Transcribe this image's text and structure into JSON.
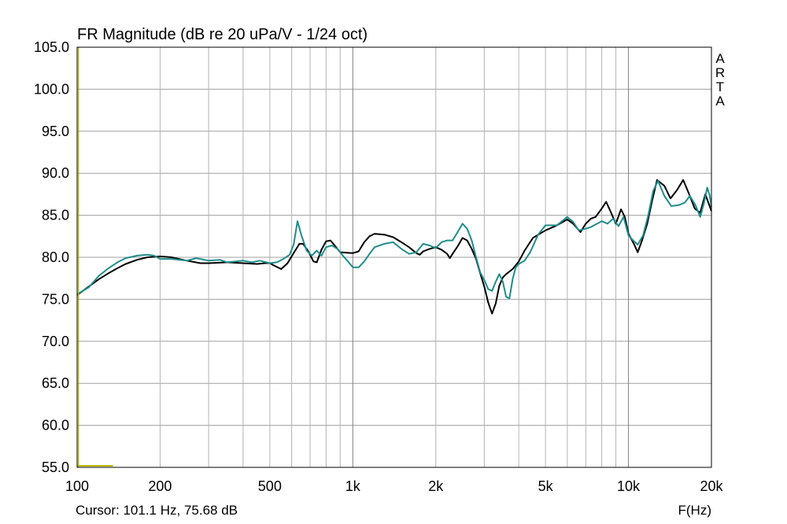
{
  "chart_data": {
    "type": "line",
    "title": "FR Magnitude (dB re 20 uPa/V - 1/24 oct)",
    "xlabel": "F(Hz)",
    "ylabel": "",
    "x_scale": "log",
    "xlim": [
      100,
      20000
    ],
    "ylim": [
      55.0,
      105.0
    ],
    "grid": true,
    "watermark": "ARTA",
    "cursor_readout": "Cursor: 101.1 Hz, 75.68 dB",
    "x_ticks": [
      {
        "value": 100,
        "label": "100"
      },
      {
        "value": 200,
        "label": "200"
      },
      {
        "value": 500,
        "label": "500"
      },
      {
        "value": 1000,
        "label": "1k"
      },
      {
        "value": 2000,
        "label": "2k"
      },
      {
        "value": 5000,
        "label": "5k"
      },
      {
        "value": 10000,
        "label": "10k"
      },
      {
        "value": 20000,
        "label": "20k"
      }
    ],
    "y_ticks": [
      {
        "value": 105,
        "label": "105.0"
      },
      {
        "value": 100,
        "label": "100.0"
      },
      {
        "value": 95,
        "label": "95.0"
      },
      {
        "value": 90,
        "label": "90.0"
      },
      {
        "value": 85,
        "label": "85.0"
      },
      {
        "value": 80,
        "label": "80.0"
      },
      {
        "value": 75,
        "label": "75.0"
      },
      {
        "value": 70,
        "label": "70.0"
      },
      {
        "value": 65,
        "label": "65.0"
      },
      {
        "value": 60,
        "label": "60.0"
      },
      {
        "value": 55,
        "label": "55.0"
      }
    ],
    "cursor_freq": 101.1,
    "cursor_marker_end_freq": 135,
    "series": [
      {
        "color": "#000000",
        "points": [
          [
            100,
            75.5
          ],
          [
            110,
            76.5
          ],
          [
            120,
            77.4
          ],
          [
            130,
            78.1
          ],
          [
            140,
            78.7
          ],
          [
            150,
            79.2
          ],
          [
            165,
            79.7
          ],
          [
            180,
            80.0
          ],
          [
            200,
            80.1
          ],
          [
            220,
            80.0
          ],
          [
            250,
            79.6
          ],
          [
            280,
            79.3
          ],
          [
            300,
            79.3
          ],
          [
            350,
            79.4
          ],
          [
            400,
            79.3
          ],
          [
            450,
            79.2
          ],
          [
            480,
            79.3
          ],
          [
            500,
            79.3
          ],
          [
            520,
            79.0
          ],
          [
            550,
            78.6
          ],
          [
            580,
            79.3
          ],
          [
            610,
            80.5
          ],
          [
            640,
            81.6
          ],
          [
            660,
            81.6
          ],
          [
            690,
            80.7
          ],
          [
            720,
            79.5
          ],
          [
            740,
            79.4
          ],
          [
            770,
            80.9
          ],
          [
            800,
            81.9
          ],
          [
            830,
            82.0
          ],
          [
            860,
            81.4
          ],
          [
            900,
            80.6
          ],
          [
            1000,
            80.5
          ],
          [
            1050,
            80.7
          ],
          [
            1100,
            81.8
          ],
          [
            1150,
            82.5
          ],
          [
            1200,
            82.8
          ],
          [
            1300,
            82.7
          ],
          [
            1400,
            82.4
          ],
          [
            1500,
            81.8
          ],
          [
            1600,
            81.2
          ],
          [
            1700,
            80.5
          ],
          [
            1750,
            80.3
          ],
          [
            1800,
            80.7
          ],
          [
            1900,
            81.0
          ],
          [
            2000,
            81.2
          ],
          [
            2100,
            80.9
          ],
          [
            2200,
            80.4
          ],
          [
            2250,
            79.9
          ],
          [
            2300,
            80.4
          ],
          [
            2400,
            81.3
          ],
          [
            2500,
            82.3
          ],
          [
            2600,
            82.0
          ],
          [
            2700,
            81.0
          ],
          [
            2800,
            79.8
          ],
          [
            2900,
            78.1
          ],
          [
            3000,
            76.5
          ],
          [
            3100,
            74.6
          ],
          [
            3200,
            73.3
          ],
          [
            3300,
            74.5
          ],
          [
            3400,
            76.6
          ],
          [
            3500,
            77.6
          ],
          [
            3600,
            78.0
          ],
          [
            3800,
            78.6
          ],
          [
            4000,
            79.5
          ],
          [
            4200,
            80.8
          ],
          [
            4500,
            82.3
          ],
          [
            5000,
            83.2
          ],
          [
            5500,
            83.8
          ],
          [
            6000,
            84.5
          ],
          [
            6300,
            84.0
          ],
          [
            6700,
            83.0
          ],
          [
            7000,
            84.0
          ],
          [
            7300,
            84.6
          ],
          [
            7600,
            84.8
          ],
          [
            8000,
            85.8
          ],
          [
            8300,
            86.6
          ],
          [
            8600,
            85.5
          ],
          [
            9000,
            84.0
          ],
          [
            9400,
            85.7
          ],
          [
            9700,
            84.8
          ],
          [
            10000,
            82.8
          ],
          [
            10500,
            81.5
          ],
          [
            10800,
            80.6
          ],
          [
            11200,
            82.0
          ],
          [
            11700,
            84.0
          ],
          [
            12200,
            86.8
          ],
          [
            12700,
            89.2
          ],
          [
            13500,
            88.5
          ],
          [
            14200,
            87.0
          ],
          [
            15000,
            88.0
          ],
          [
            15800,
            89.2
          ],
          [
            16600,
            87.5
          ],
          [
            17400,
            85.8
          ],
          [
            18200,
            85.3
          ],
          [
            19000,
            87.5
          ],
          [
            19500,
            86.5
          ],
          [
            20000,
            85.5
          ]
        ]
      },
      {
        "color": "#1f8c8c",
        "points": [
          [
            100,
            75.6
          ],
          [
            110,
            76.4
          ],
          [
            120,
            77.8
          ],
          [
            130,
            78.7
          ],
          [
            140,
            79.4
          ],
          [
            150,
            79.9
          ],
          [
            165,
            80.2
          ],
          [
            180,
            80.3
          ],
          [
            190,
            80.2
          ],
          [
            200,
            79.8
          ],
          [
            220,
            79.8
          ],
          [
            250,
            79.6
          ],
          [
            270,
            79.9
          ],
          [
            300,
            79.6
          ],
          [
            330,
            79.7
          ],
          [
            350,
            79.4
          ],
          [
            400,
            79.6
          ],
          [
            430,
            79.4
          ],
          [
            460,
            79.6
          ],
          [
            500,
            79.3
          ],
          [
            530,
            79.4
          ],
          [
            560,
            79.8
          ],
          [
            590,
            80.3
          ],
          [
            610,
            81.5
          ],
          [
            630,
            84.3
          ],
          [
            650,
            82.7
          ],
          [
            680,
            80.8
          ],
          [
            710,
            80.2
          ],
          [
            740,
            80.8
          ],
          [
            770,
            80.2
          ],
          [
            800,
            81.2
          ],
          [
            840,
            81.4
          ],
          [
            880,
            81.0
          ],
          [
            920,
            80.2
          ],
          [
            960,
            79.5
          ],
          [
            1000,
            78.8
          ],
          [
            1050,
            78.8
          ],
          [
            1100,
            79.5
          ],
          [
            1150,
            80.4
          ],
          [
            1200,
            81.2
          ],
          [
            1300,
            81.6
          ],
          [
            1400,
            81.8
          ],
          [
            1500,
            81.0
          ],
          [
            1600,
            80.4
          ],
          [
            1700,
            80.6
          ],
          [
            1800,
            81.6
          ],
          [
            1900,
            81.4
          ],
          [
            2000,
            81.1
          ],
          [
            2100,
            81.8
          ],
          [
            2200,
            82.0
          ],
          [
            2300,
            82.0
          ],
          [
            2400,
            83.0
          ],
          [
            2500,
            84.0
          ],
          [
            2600,
            83.4
          ],
          [
            2700,
            82.0
          ],
          [
            2800,
            80.0
          ],
          [
            2900,
            78.2
          ],
          [
            3000,
            77.3
          ],
          [
            3100,
            76.2
          ],
          [
            3200,
            76.0
          ],
          [
            3300,
            77.1
          ],
          [
            3400,
            78.0
          ],
          [
            3500,
            77.1
          ],
          [
            3600,
            75.3
          ],
          [
            3700,
            75.1
          ],
          [
            3800,
            77.4
          ],
          [
            3900,
            78.8
          ],
          [
            4000,
            79.2
          ],
          [
            4200,
            79.6
          ],
          [
            4400,
            80.6
          ],
          [
            4700,
            82.7
          ],
          [
            5000,
            83.8
          ],
          [
            5500,
            83.8
          ],
          [
            6000,
            84.8
          ],
          [
            6300,
            84.2
          ],
          [
            6600,
            83.2
          ],
          [
            7000,
            83.4
          ],
          [
            7300,
            83.6
          ],
          [
            7700,
            84.0
          ],
          [
            8000,
            84.3
          ],
          [
            8400,
            84.0
          ],
          [
            8800,
            84.6
          ],
          [
            9200,
            83.7
          ],
          [
            9600,
            84.8
          ],
          [
            10000,
            82.6
          ],
          [
            10400,
            82.0
          ],
          [
            10800,
            81.5
          ],
          [
            11300,
            82.6
          ],
          [
            11800,
            85.0
          ],
          [
            12300,
            87.9
          ],
          [
            12800,
            89.1
          ],
          [
            13500,
            87.3
          ],
          [
            14300,
            86.1
          ],
          [
            15200,
            86.2
          ],
          [
            16000,
            86.5
          ],
          [
            16700,
            87.3
          ],
          [
            17500,
            86.2
          ],
          [
            18200,
            84.8
          ],
          [
            18800,
            86.5
          ],
          [
            19300,
            88.3
          ],
          [
            19700,
            87.4
          ],
          [
            20000,
            86.0
          ]
        ]
      }
    ]
  }
}
